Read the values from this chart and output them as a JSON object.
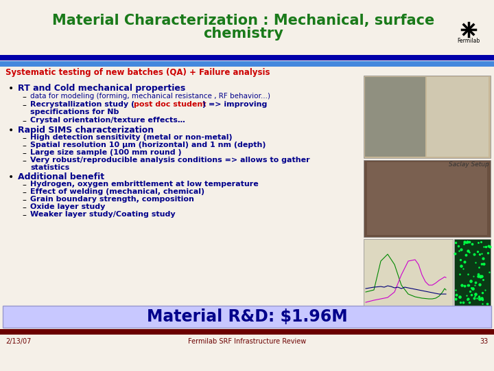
{
  "title_line1": "Material Characterization : Mechanical, surface",
  "title_line2": "chemistry",
  "title_color": "#1a7a1a",
  "title_fontsize": 15,
  "bg_color": "#f5f0e8",
  "header_bg": "#f5f0e8",
  "blue_bar1_color": "#0000aa",
  "blue_bar2_color": "#4488dd",
  "section_heading": "Systematic testing of new batches (QA) + Failure analysis",
  "section_heading_color": "#cc0000",
  "bullet_color": "#00008b",
  "footer_box_color": "#c8c8ff",
  "footer_text": "Material R&D: $1.96M",
  "footer_text_color": "#00008b",
  "footer_text_size": 17,
  "bottom_bar_color": "#6b0000",
  "bottom_left_text": "2/13/07",
  "bottom_center_text": "Fermilab SRF Infrastructure Review",
  "bottom_right_text": "33",
  "bottom_text_color": "#6b0000",
  "saclay_label": "Saclay Setup",
  "saclay_label_color": "#333333",
  "img_top_color": "#a8a898",
  "img_mid_color": "#8a6040",
  "img_bot_chart_color": "#e8e4d0",
  "img_bot_green_color": "#1a5a2a"
}
